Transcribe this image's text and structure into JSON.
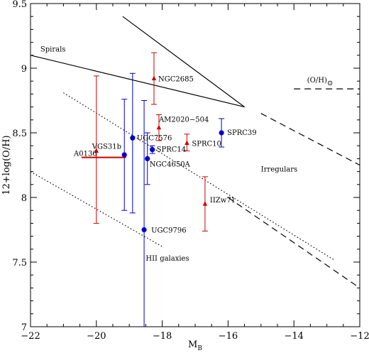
{
  "chart_data": {
    "type": "scatter",
    "xlabel": "M",
    "xlabel_sub": "B",
    "ylabel": "12+log(O/H)",
    "xlim": [
      -22,
      -12
    ],
    "ylim": [
      7,
      9.5
    ],
    "x_ticks": [
      -22,
      -20,
      -18,
      -16,
      -14,
      -12
    ],
    "x_tick_labels": [
      "−22",
      "−20",
      "−18",
      "−16",
      "−14",
      "−12"
    ],
    "y_ticks": [
      7,
      7.5,
      8,
      8.5,
      9,
      9.5
    ],
    "y_tick_labels": [
      "7",
      "7.5",
      "8",
      "8.5",
      "9",
      "9.5"
    ],
    "colors": {
      "blue": "#0000cc",
      "red": "#cc0000",
      "line": "#000000"
    },
    "series": [
      {
        "marker": "circle",
        "color": "#0000cc",
        "points": [
          {
            "label": "UGC7576",
            "x": -18.9,
            "y": 8.46,
            "ylo": 7.88,
            "yhi": 8.96
          },
          {
            "label": "",
            "x": -19.15,
            "y": 8.33,
            "ylo": 7.9,
            "yhi": 8.76
          },
          {
            "label": "SPRC14",
            "x": -18.3,
            "y": 8.37,
            "ylo": 8.34,
            "yhi": 8.4
          },
          {
            "label": "NGC4650A",
            "x": -18.45,
            "y": 8.3,
            "ylo": 8.1,
            "yhi": 8.5
          },
          {
            "label": "SPRC39",
            "x": -16.2,
            "y": 8.5,
            "ylo": 8.39,
            "yhi": 8.61
          },
          {
            "label": "UGC9796",
            "x": -18.55,
            "y": 7.75,
            "ylo": 7.0,
            "yhi": 8.75
          }
        ]
      },
      {
        "marker": "triangle",
        "color": "#cc0000",
        "points": [
          {
            "label": "NGC2685",
            "x": -18.25,
            "y": 8.92,
            "ylo": 8.72,
            "yhi": 9.12
          },
          {
            "label": "AM2020−504",
            "x": -18.1,
            "y": 8.54,
            "ylo": 8.44,
            "yhi": 8.64
          },
          {
            "label": "SPRC10",
            "x": -17.25,
            "y": 8.42,
            "ylo": 8.36,
            "yhi": 8.49
          },
          {
            "label": "IIZw71",
            "x": -16.7,
            "y": 7.95,
            "ylo": 7.74,
            "yhi": 8.16
          },
          {
            "label": "VGS31b",
            "x": -20.0,
            "y": 8.36,
            "ylo": 7.8,
            "yhi": 8.94
          },
          {
            "label": "A0136",
            "x": -19.5,
            "y": 8.31,
            "xlo": -20.45,
            "xhi": -19.1,
            "no_marker": true
          }
        ]
      }
    ],
    "lines": [
      {
        "style": "solid",
        "points": [
          [
            -22,
            9.1
          ],
          [
            -15.5,
            8.7
          ]
        ]
      },
      {
        "style": "solid",
        "points": [
          [
            -19.2,
            9.4
          ],
          [
            -15.5,
            8.7
          ]
        ]
      },
      {
        "style": "dotted",
        "points": [
          [
            -21.0,
            8.81
          ],
          [
            -12.8,
            7.52
          ]
        ]
      },
      {
        "style": "dotted",
        "points": [
          [
            -22,
            8.2
          ],
          [
            -18.0,
            7.62
          ]
        ]
      },
      {
        "style": "dashed",
        "points": [
          [
            -15.0,
            8.65
          ],
          [
            -12.0,
            8.25
          ]
        ]
      },
      {
        "style": "dashed",
        "points": [
          [
            -16.0,
            8.0
          ],
          [
            -12.0,
            7.3
          ]
        ]
      },
      {
        "style": "dashed",
        "points": [
          [
            -14.0,
            8.84
          ],
          [
            -12.0,
            8.84
          ]
        ]
      }
    ],
    "annotations": [
      {
        "text": "Spirals",
        "x": -21.7,
        "y": 9.13
      },
      {
        "text": "Irregulars",
        "x": -15.0,
        "y": 8.2
      },
      {
        "text": "HII galaxies",
        "x": -18.5,
        "y": 7.51
      },
      {
        "text": "(O/H)",
        "sub": "⊙",
        "x": -13.6,
        "y": 8.89,
        "large": true
      }
    ]
  }
}
